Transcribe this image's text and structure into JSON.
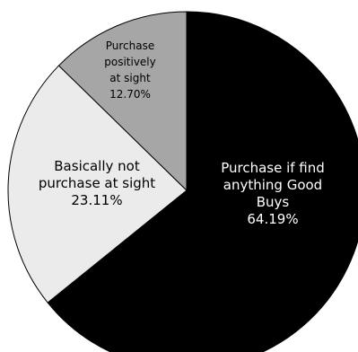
{
  "chart_data": {
    "type": "pie",
    "title": "",
    "slices": [
      {
        "label_lines": [
          "Purchase if find",
          "anything Good",
          "Buys"
        ],
        "percent_label": "64.19%",
        "value": 64.19,
        "color": "#000000",
        "text_color": "#ffffff"
      },
      {
        "label_lines": [
          "Basically not",
          "purchase at sight"
        ],
        "percent_label": "23.11%",
        "value": 23.11,
        "color": "#ebebeb",
        "text_color": "#000000"
      },
      {
        "label_lines": [
          "Purchase",
          "positively",
          "at sight"
        ],
        "percent_label": "12.70%",
        "value": 12.7,
        "color": "#a6a6a6",
        "text_color": "#000000"
      }
    ],
    "start_angle": "12 o'clock",
    "direction": "clockwise",
    "legend": "none"
  }
}
